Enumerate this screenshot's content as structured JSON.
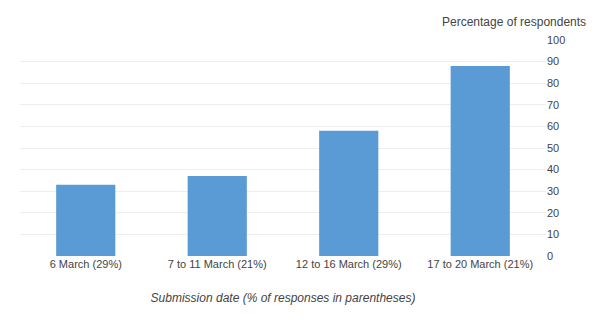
{
  "chart_data": {
    "type": "bar",
    "categories": [
      "6 March (29%)",
      "7 to 11 March (21%)",
      "12 to 16 March (29%)",
      "17 to 20 March (21%)"
    ],
    "values": [
      33,
      37,
      58,
      88
    ],
    "color": "#5b9bd5",
    "xlabel": "Submission date (% of responses in parentheses)",
    "ylabel": "Percentage of respondents",
    "ylim": [
      0,
      100
    ],
    "yticks": [
      0,
      10,
      20,
      30,
      40,
      50,
      60,
      70,
      80,
      90,
      100
    ],
    "grid": true
  }
}
